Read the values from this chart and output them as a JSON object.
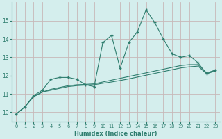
{
  "xlabel": "Humidex (Indice chaleur)",
  "x_values": [
    0,
    1,
    2,
    3,
    4,
    5,
    6,
    7,
    8,
    9,
    10,
    11,
    12,
    13,
    14,
    15,
    16,
    17,
    18,
    19,
    20,
    21,
    22,
    23
  ],
  "line_jagged_y": [
    9.9,
    10.3,
    10.9,
    11.2,
    11.8,
    11.9,
    11.9,
    11.8,
    11.5,
    11.4,
    13.8,
    14.2,
    12.4,
    13.8,
    14.4,
    15.6,
    14.9,
    14.0,
    13.2,
    13.0,
    13.1,
    12.7,
    12.1,
    12.3
  ],
  "line_smooth1_y": [
    9.9,
    10.3,
    10.85,
    11.1,
    11.25,
    11.35,
    11.45,
    11.5,
    11.52,
    11.55,
    11.65,
    11.75,
    11.85,
    11.95,
    12.05,
    12.15,
    12.25,
    12.35,
    12.45,
    12.55,
    12.6,
    12.6,
    12.15,
    12.3
  ],
  "line_smooth2_y": [
    9.9,
    10.3,
    10.85,
    11.1,
    11.2,
    11.3,
    11.4,
    11.45,
    11.48,
    11.5,
    11.58,
    11.65,
    11.73,
    11.82,
    11.92,
    12.02,
    12.12,
    12.22,
    12.32,
    12.42,
    12.48,
    12.52,
    12.1,
    12.25
  ],
  "ylim": [
    9.5,
    16.0
  ],
  "yticks": [
    10,
    11,
    12,
    13,
    14,
    15
  ],
  "line_color": "#2e7d6e",
  "bg_color": "#d4eeed",
  "grid_color": "#c8b8b8"
}
